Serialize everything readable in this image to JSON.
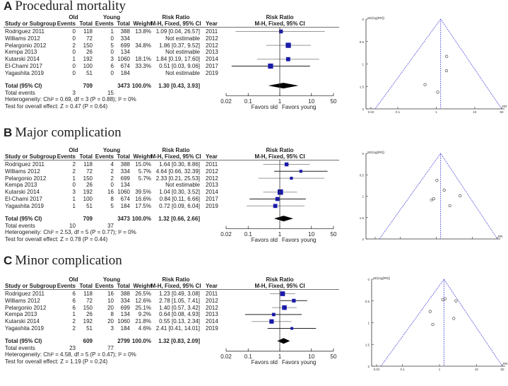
{
  "table_headers": {
    "group_old": "Old",
    "group_young": "Young",
    "risk_ratio": "Risk Ratio",
    "study": "Study or Subgroup",
    "events": "Events",
    "total": "Total",
    "weight": "Weight",
    "method": "M-H, Fixed, 95% CI",
    "year": "Year"
  },
  "colors": {
    "square": "#1a1aaa",
    "funnel_line": "#5555dd"
  },
  "chart_data": [
    {
      "type": "forest",
      "letter": "A",
      "title": "Procedural mortality",
      "studies": [
        {
          "name": "Rodriguez 2011",
          "old_events": "0",
          "old_total": "118",
          "young_events": "1",
          "young_total": "388",
          "weight": "13.8%",
          "rr_text": "1.09 [0.04, 26.57]",
          "year": "2011",
          "rr": 1.09,
          "lo": 0.04,
          "hi": 26.57,
          "w": 13.8
        },
        {
          "name": "Williams 2012",
          "old_events": "0",
          "old_total": "72",
          "young_events": "0",
          "young_total": "334",
          "weight": "",
          "rr_text": "Not estimable",
          "year": "2012",
          "rr": null,
          "lo": null,
          "hi": null,
          "w": 0
        },
        {
          "name": "Pelargonio 2012",
          "old_events": "2",
          "old_total": "150",
          "young_events": "5",
          "young_total": "699",
          "weight": "34.8%",
          "rr_text": "1.86 [0.37, 9.52]",
          "year": "2012",
          "rr": 1.86,
          "lo": 0.37,
          "hi": 9.52,
          "w": 34.8
        },
        {
          "name": "Kempa 2013",
          "old_events": "0",
          "old_total": "26",
          "young_events": "0",
          "young_total": "134",
          "weight": "",
          "rr_text": "Not estimable",
          "year": "2013",
          "rr": null,
          "lo": null,
          "hi": null,
          "w": 0
        },
        {
          "name": "Kutarski 2014",
          "old_events": "1",
          "old_total": "192",
          "young_events": "3",
          "young_total": "1060",
          "weight": "18.1%",
          "rr_text": "1.84 [0.19, 17.60]",
          "year": "2014",
          "rr": 1.84,
          "lo": 0.19,
          "hi": 17.6,
          "w": 18.1
        },
        {
          "name": "El-Chami 2017",
          "old_events": "0",
          "old_total": "100",
          "young_events": "6",
          "young_total": "674",
          "weight": "33.3%",
          "rr_text": "0.51 [0.03, 9.06]",
          "year": "2017",
          "rr": 0.51,
          "lo": 0.03,
          "hi": 9.06,
          "w": 33.3
        },
        {
          "name": "Yagashita 2019",
          "old_events": "0",
          "old_total": "51",
          "young_events": "0",
          "young_total": "184",
          "weight": "",
          "rr_text": "Not estimable",
          "year": "2019",
          "rr": null,
          "lo": null,
          "hi": null,
          "w": 0
        }
      ],
      "total": {
        "label": "Total (95% CI)",
        "old_total": "709",
        "young_total": "3473",
        "weight": "100.0%",
        "rr_text": "1.30 [0.43, 3.93]",
        "rr": 1.3,
        "lo": 0.43,
        "hi": 3.93
      },
      "total_events": {
        "label": "Total events",
        "old": "3",
        "young": "15"
      },
      "heterogeneity": "Heterogeneity: Chi² = 0.69, df = 3 (P = 0.88); I² = 0%",
      "overall_effect": "Test for overall effect: Z = 0.47 (P = 0.64)",
      "axis_ticks": [
        "0.02",
        "0.1",
        "1",
        "10",
        "50"
      ],
      "axis_values": [
        0.02,
        0.1,
        1,
        10,
        50
      ],
      "favors_left": "Favors old",
      "favors_right": "Favors young",
      "funnel": {
        "ylabel": "SE(log[RR])",
        "xlabel": "RR",
        "yticks": [
          "0",
          "0.5",
          "1",
          "1.5",
          "2"
        ],
        "ytick_values": [
          0,
          0.5,
          1,
          1.5,
          2
        ],
        "xticks": [
          "0.02",
          "0.1",
          "1",
          "10",
          "50"
        ],
        "ylim": [
          0,
          2
        ],
        "xlim": [
          0.02,
          50
        ],
        "summary_rr": 1.3,
        "points": [
          {
            "rr": 1.09,
            "se": 1.63
          },
          {
            "rr": 1.86,
            "se": 0.83
          },
          {
            "rr": 1.84,
            "se": 1.15
          },
          {
            "rr": 0.51,
            "se": 1.46
          }
        ]
      }
    },
    {
      "type": "forest",
      "letter": "B",
      "title": "Major complication",
      "studies": [
        {
          "name": "Rodriguez 2011",
          "old_events": "2",
          "old_total": "118",
          "young_events": "4",
          "young_total": "388",
          "weight": "15.0%",
          "rr_text": "1.64 [0.30, 8.86]",
          "year": "2011",
          "rr": 1.64,
          "lo": 0.3,
          "hi": 8.86,
          "w": 15.0
        },
        {
          "name": "Williams 2012",
          "old_events": "2",
          "old_total": "72",
          "young_events": "2",
          "young_total": "334",
          "weight": "5.7%",
          "rr_text": "4.64 [0.66, 32.39]",
          "year": "2012",
          "rr": 4.64,
          "lo": 0.66,
          "hi": 32.39,
          "w": 5.7
        },
        {
          "name": "Pelargonio 2012",
          "old_events": "1",
          "old_total": "150",
          "young_events": "2",
          "young_total": "699",
          "weight": "5.7%",
          "rr_text": "2.33 [0.21, 25.53]",
          "year": "2012",
          "rr": 2.33,
          "lo": 0.21,
          "hi": 25.53,
          "w": 5.7
        },
        {
          "name": "Kempa 2013",
          "old_events": "0",
          "old_total": "26",
          "young_events": "0",
          "young_total": "134",
          "weight": "",
          "rr_text": "Not estimable",
          "year": "2013",
          "rr": null,
          "lo": null,
          "hi": null,
          "w": 0
        },
        {
          "name": "Kutarski 2014",
          "old_events": "3",
          "old_total": "192",
          "young_events": "16",
          "young_total": "1060",
          "weight": "39.5%",
          "rr_text": "1.04 [0.30, 3.52]",
          "year": "2014",
          "rr": 1.04,
          "lo": 0.3,
          "hi": 3.52,
          "w": 39.5
        },
        {
          "name": "El-Chami 2017",
          "old_events": "1",
          "old_total": "100",
          "young_events": "8",
          "young_total": "674",
          "weight": "16.6%",
          "rr_text": "0.84 [0.11, 6.66]",
          "year": "2017",
          "rr": 0.84,
          "lo": 0.11,
          "hi": 6.66,
          "w": 16.6
        },
        {
          "name": "Yagashita 2019",
          "old_events": "1",
          "old_total": "51",
          "young_events": "5",
          "young_total": "184",
          "weight": "17.5%",
          "rr_text": "0.72 [0.09, 6.04]",
          "year": "2019",
          "rr": 0.72,
          "lo": 0.09,
          "hi": 6.04,
          "w": 17.5
        }
      ],
      "total": {
        "label": "Total (95% CI)",
        "old_total": "709",
        "young_total": "3473",
        "weight": "100.0%",
        "rr_text": "1.32 [0.66, 2.66]",
        "rr": 1.32,
        "lo": 0.66,
        "hi": 2.66
      },
      "total_events": {
        "label": "Total events",
        "old": "10",
        "young": "37"
      },
      "heterogeneity": "Heterogeneity: Chi² = 2.53, df = 5 (P = 0.77); I² = 0%",
      "overall_effect": "Test for overall effect: Z = 0.78 (P = 0.44)",
      "axis_ticks": [
        "0.02",
        "0.1",
        "1",
        "10",
        "50"
      ],
      "axis_values": [
        0.02,
        0.1,
        1,
        10,
        50
      ],
      "favors_left": "Favors old",
      "favors_right": "Favors young",
      "funnel": {
        "ylabel": "SE(log[RR])",
        "xlabel": "RR",
        "yticks": [
          "0",
          "0.5",
          "1",
          "1.5",
          "2"
        ],
        "ytick_values": [
          0,
          0.5,
          1,
          1.5,
          2
        ],
        "xticks": [],
        "ylim": [
          0,
          2
        ],
        "xlim": [
          0.02,
          50
        ],
        "summary_rr": 1.32,
        "points": [
          {
            "rr": 1.04,
            "se": 0.63
          },
          {
            "rr": 1.66,
            "se": 0.86
          },
          {
            "rr": 4.6,
            "se": 0.99
          },
          {
            "rr": 0.85,
            "se": 1.06
          },
          {
            "rr": 0.74,
            "se": 1.09
          },
          {
            "rr": 2.38,
            "se": 1.22
          }
        ]
      }
    },
    {
      "type": "forest",
      "letter": "C",
      "title": "Minor complication",
      "studies": [
        {
          "name": "Rodriguez 2011",
          "old_events": "6",
          "old_total": "118",
          "young_events": "16",
          "young_total": "388",
          "weight": "26.5%",
          "rr_text": "1.23 [0.49, 3.08]",
          "year": "2011",
          "rr": 1.23,
          "lo": 0.49,
          "hi": 3.08,
          "w": 26.5
        },
        {
          "name": "Williams 2012",
          "old_events": "6",
          "old_total": "72",
          "young_events": "10",
          "young_total": "334",
          "weight": "12.6%",
          "rr_text": "2.78 [1.05, 7.41]",
          "year": "2012",
          "rr": 2.78,
          "lo": 1.05,
          "hi": 7.41,
          "w": 12.6
        },
        {
          "name": "Pelargonio 2012",
          "old_events": "6",
          "old_total": "150",
          "young_events": "20",
          "young_total": "699",
          "weight": "25.1%",
          "rr_text": "1.40 [0.57, 3.42]",
          "year": "2012",
          "rr": 1.4,
          "lo": 0.57,
          "hi": 3.42,
          "w": 25.1
        },
        {
          "name": "Kempa 2013",
          "old_events": "1",
          "old_total": "26",
          "young_events": "8",
          "young_total": "134",
          "weight": "9.2%",
          "rr_text": "0.64 [0.08, 4.93]",
          "year": "2013",
          "rr": 0.64,
          "lo": 0.08,
          "hi": 4.93,
          "w": 9.2
        },
        {
          "name": "Kutarski 2014",
          "old_events": "2",
          "old_total": "192",
          "young_events": "20",
          "young_total": "1060",
          "weight": "21.8%",
          "rr_text": "0.55 [0.13, 2.34]",
          "year": "2014",
          "rr": 0.55,
          "lo": 0.13,
          "hi": 2.34,
          "w": 21.8
        },
        {
          "name": "Yagashita 2019",
          "old_events": "2",
          "old_total": "51",
          "young_events": "3",
          "young_total": "184",
          "weight": "4.6%",
          "rr_text": "2.41 [0.41, 14.01]",
          "year": "2019",
          "rr": 2.41,
          "lo": 0.41,
          "hi": 14.01,
          "w": 4.6
        }
      ],
      "total": {
        "label": "Total (95% CI)",
        "old_total": "609",
        "young_total": "2799",
        "weight": "100.0%",
        "rr_text": "1.32 [0.83, 2.09]",
        "rr": 1.32,
        "lo": 0.83,
        "hi": 2.09
      },
      "total_events": {
        "label": "Total events",
        "old": "23",
        "young": "77"
      },
      "heterogeneity": "Heterogeneity: Chi² = 4.58, df = 5 (P = 0.47); I² = 0%",
      "overall_effect": "Test for overall effect: Z = 1.19 (P = 0.24)",
      "axis_ticks": [
        "0.02",
        "0.1",
        "1",
        "10",
        "50"
      ],
      "axis_values": [
        0.02,
        0.1,
        1,
        10,
        50
      ],
      "favors_left": "Favors old",
      "favors_right": "Favors young",
      "funnel": {
        "ylabel": "SE(log[RR])",
        "xlabel": "RR",
        "yticks": [
          "0",
          "0.5",
          "1",
          "1.5",
          "2"
        ],
        "ytick_values": [
          0,
          0.5,
          1,
          1.5,
          2
        ],
        "xticks": [
          "0.02",
          "0.1",
          "1",
          "10",
          "50"
        ],
        "ylim": [
          0,
          2
        ],
        "xlim": [
          0.02,
          50
        ],
        "summary_rr": 1.32,
        "points": [
          {
            "rr": 1.23,
            "se": 0.47
          },
          {
            "rr": 1.42,
            "se": 0.45
          },
          {
            "rr": 2.8,
            "se": 0.5
          },
          {
            "rr": 0.56,
            "se": 0.74
          },
          {
            "rr": 2.44,
            "se": 0.9
          },
          {
            "rr": 0.66,
            "se": 1.04
          }
        ]
      }
    }
  ]
}
